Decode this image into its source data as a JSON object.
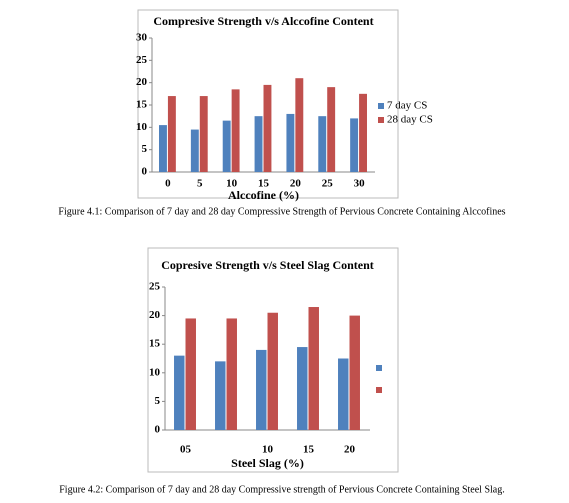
{
  "chart_data": [
    {
      "type": "bar",
      "title": "Compresive  Strength  v/s  Alccofine  Content",
      "x_label": "Alccofine (%)",
      "categories": [
        "0",
        "5",
        "10",
        "15",
        "20",
        "25",
        "30"
      ],
      "series": [
        {
          "name": "7 day CS",
          "color": "#4f81bd",
          "values": [
            10.5,
            9.5,
            11.5,
            12.5,
            13,
            12.5,
            12
          ]
        },
        {
          "name": "28 day CS",
          "color": "#c0504d",
          "values": [
            17,
            17,
            18.5,
            19.5,
            21,
            19,
            17.5
          ]
        }
      ],
      "ylim": [
        0,
        30
      ],
      "yticks": [
        0,
        5,
        10,
        15,
        20,
        25,
        30
      ],
      "grid": false
    },
    {
      "type": "bar",
      "title": "Copresive Strength v/s Steel Slag Content",
      "x_label": "Steel Slag (%)",
      "categories": [
        "05",
        null,
        "10",
        "15",
        "20"
      ],
      "series": [
        {
          "color": "#4f81bd",
          "values": [
            13,
            12,
            14,
            14.5,
            12.5
          ]
        },
        {
          "color": "#c0504d",
          "values": [
            19.5,
            19.5,
            20.5,
            21.5,
            20
          ]
        }
      ],
      "ylim": [
        0,
        25
      ],
      "yticks": [
        0,
        5,
        10,
        15,
        20,
        25
      ],
      "grid": false
    }
  ],
  "captions": [
    "Figure 4.1: Comparison of 7 day and 28 day Compressive Strength of Pervious Concrete Containing Alccofines",
    "Figure 4.2: Comparison of 7 day and 28 day Compressive strength of Pervious Concrete Containing Steel Slag."
  ]
}
